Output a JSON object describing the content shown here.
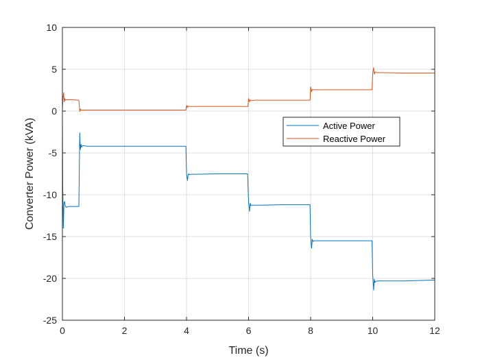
{
  "chart_data": {
    "type": "line",
    "title": "",
    "xlabel": "Time (s)",
    "ylabel": "Converter Power (kVA)",
    "xlim": [
      0,
      12
    ],
    "ylim": [
      -25,
      10
    ],
    "xticks": [
      0,
      2,
      4,
      6,
      8,
      10,
      12
    ],
    "yticks": [
      10,
      5,
      0,
      -5,
      -10,
      -15,
      -20,
      -25
    ],
    "grid": true,
    "legend_position": "middle-right",
    "series": [
      {
        "name": "Active Power",
        "color": "#0072BD",
        "x": [
          0,
          0.01,
          0.03,
          0.05,
          0.07,
          0.09,
          0.12,
          0.2,
          0.3,
          0.4,
          0.5,
          0.53,
          0.56,
          0.58,
          0.6,
          0.62,
          0.65,
          0.7,
          0.8,
          1.0,
          2.0,
          3.0,
          3.98,
          4.0,
          4.03,
          4.05,
          4.07,
          4.1,
          4.15,
          4.3,
          5.0,
          5.97,
          6.0,
          6.03,
          6.05,
          6.07,
          6.1,
          6.15,
          6.3,
          7.0,
          7.98,
          8.0,
          8.03,
          8.05,
          8.07,
          8.1,
          8.15,
          8.3,
          9.0,
          9.98,
          10.0,
          10.03,
          10.05,
          10.07,
          10.1,
          10.15,
          10.3,
          11.0,
          12.0
        ],
        "y": [
          -0.5,
          -9,
          -14,
          -11,
          -10.8,
          -11.3,
          -11.5,
          -11.4,
          -11.4,
          -11.4,
          -11.4,
          -11.4,
          -2.6,
          -4.6,
          -4.0,
          -4.3,
          -4.15,
          -4.15,
          -4.2,
          -4.2,
          -4.2,
          -4.2,
          -4.2,
          -7.5,
          -8.3,
          -7.6,
          -7.5,
          -7.6,
          -7.55,
          -7.55,
          -7.5,
          -7.5,
          -10.9,
          -12.0,
          -11.0,
          -11.3,
          -11.25,
          -11.25,
          -11.25,
          -11.2,
          -11.2,
          -15.0,
          -16.4,
          -15.3,
          -15.6,
          -15.5,
          -15.5,
          -15.5,
          -15.5,
          -15.5,
          -19.5,
          -21.4,
          -20.1,
          -20.5,
          -20.35,
          -20.3,
          -20.3,
          -20.3,
          -20.2
        ]
      },
      {
        "name": "Reactive Power",
        "color": "#D95319",
        "x": [
          0,
          0.02,
          0.04,
          0.06,
          0.08,
          0.1,
          0.15,
          0.3,
          0.5,
          0.53,
          0.56,
          0.58,
          0.6,
          0.65,
          1.0,
          2.0,
          3.0,
          3.98,
          4.0,
          4.03,
          4.05,
          4.1,
          4.2,
          5.0,
          5.98,
          6.0,
          6.03,
          6.05,
          6.1,
          6.2,
          7.0,
          7.98,
          8.0,
          8.03,
          8.05,
          8.1,
          8.2,
          9.0,
          9.98,
          10.0,
          10.03,
          10.05,
          10.08,
          10.12,
          10.2,
          11.0,
          12.0
        ],
        "y": [
          0.2,
          1.6,
          2.2,
          1.1,
          1.5,
          1.3,
          1.35,
          1.35,
          1.3,
          1.3,
          -0.05,
          0.25,
          0.1,
          0.12,
          0.12,
          0.12,
          0.12,
          0.12,
          0.7,
          0.4,
          0.6,
          0.55,
          0.55,
          0.55,
          0.55,
          1.5,
          1.1,
          1.35,
          1.25,
          1.3,
          1.3,
          1.3,
          2.9,
          2.3,
          2.6,
          2.55,
          2.55,
          2.55,
          2.55,
          4.5,
          5.2,
          4.4,
          4.7,
          4.6,
          4.6,
          4.55,
          4.55
        ]
      }
    ]
  }
}
